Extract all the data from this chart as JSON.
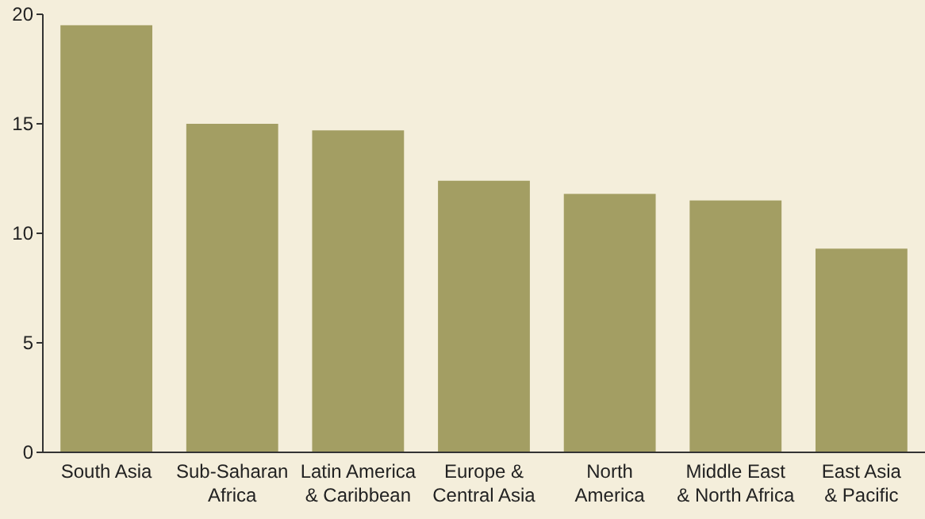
{
  "chart_data": {
    "type": "bar",
    "categories": [
      "South Asia",
      "Sub-Saharan\nAfrica",
      "Latin America\n& Caribbean",
      "Europe &\nCentral Asia",
      "North\nAmerica",
      "Middle East\n& North Africa",
      "East Asia\n& Pacific"
    ],
    "values": [
      19.5,
      15.0,
      14.7,
      12.4,
      11.8,
      11.5,
      9.3
    ],
    "color": "#a39e63",
    "ylim": [
      0,
      20
    ],
    "yticks": [
      0,
      5,
      10,
      15,
      20
    ],
    "grid": false
  }
}
